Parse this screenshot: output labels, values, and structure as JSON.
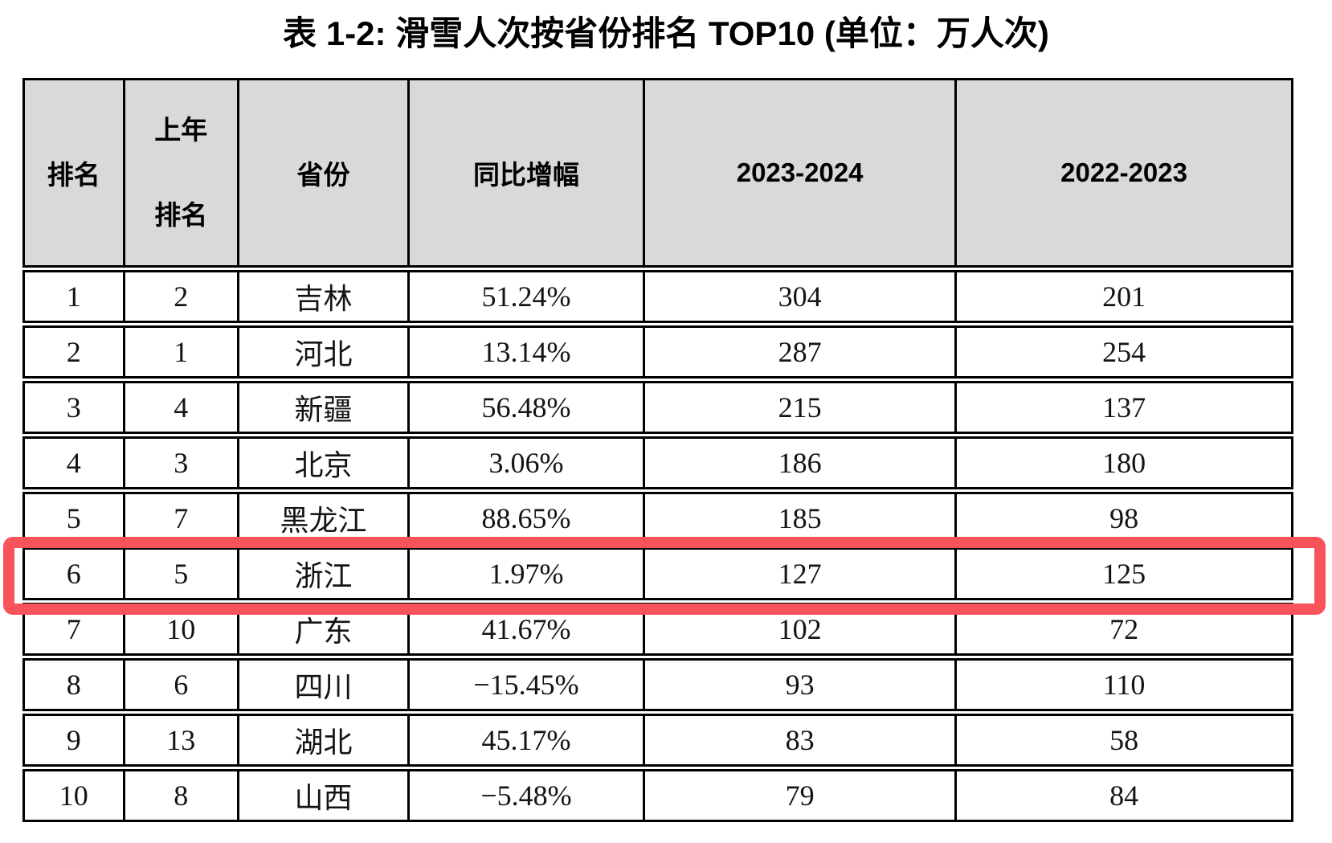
{
  "title": "表 1-2: 滑雪人次按省份排名 TOP10 (单位：万人次)",
  "table": {
    "headers": [
      "排名",
      "上年\n排名",
      "省份",
      "同比增幅",
      "2023-2024",
      "2022-2023"
    ],
    "rows": [
      [
        "1",
        "2",
        "吉林",
        "51.24%",
        "304",
        "201"
      ],
      [
        "2",
        "1",
        "河北",
        "13.14%",
        "287",
        "254"
      ],
      [
        "3",
        "4",
        "新疆",
        "56.48%",
        "215",
        "137"
      ],
      [
        "4",
        "3",
        "北京",
        "3.06%",
        "186",
        "180"
      ],
      [
        "5",
        "7",
        "黑龙江",
        "88.65%",
        "185",
        "98"
      ],
      [
        "6",
        "5",
        "浙江",
        "1.97%",
        "127",
        "125"
      ],
      [
        "7",
        "10",
        "广东",
        "41.67%",
        "102",
        "72"
      ],
      [
        "8",
        "6",
        "四川",
        "−15.45%",
        "93",
        "110"
      ],
      [
        "9",
        "13",
        "湖北",
        "45.17%",
        "83",
        "58"
      ],
      [
        "10",
        "8",
        "山西",
        "−5.48%",
        "79",
        "84"
      ]
    ],
    "highlight": {
      "row_index": 5,
      "province": "浙江"
    }
  },
  "colors": {
    "header_bg": "#d9d9d9",
    "border": "#000000",
    "highlight_border": "#f8525a",
    "text": "#000000",
    "page_bg": "#ffffff"
  }
}
